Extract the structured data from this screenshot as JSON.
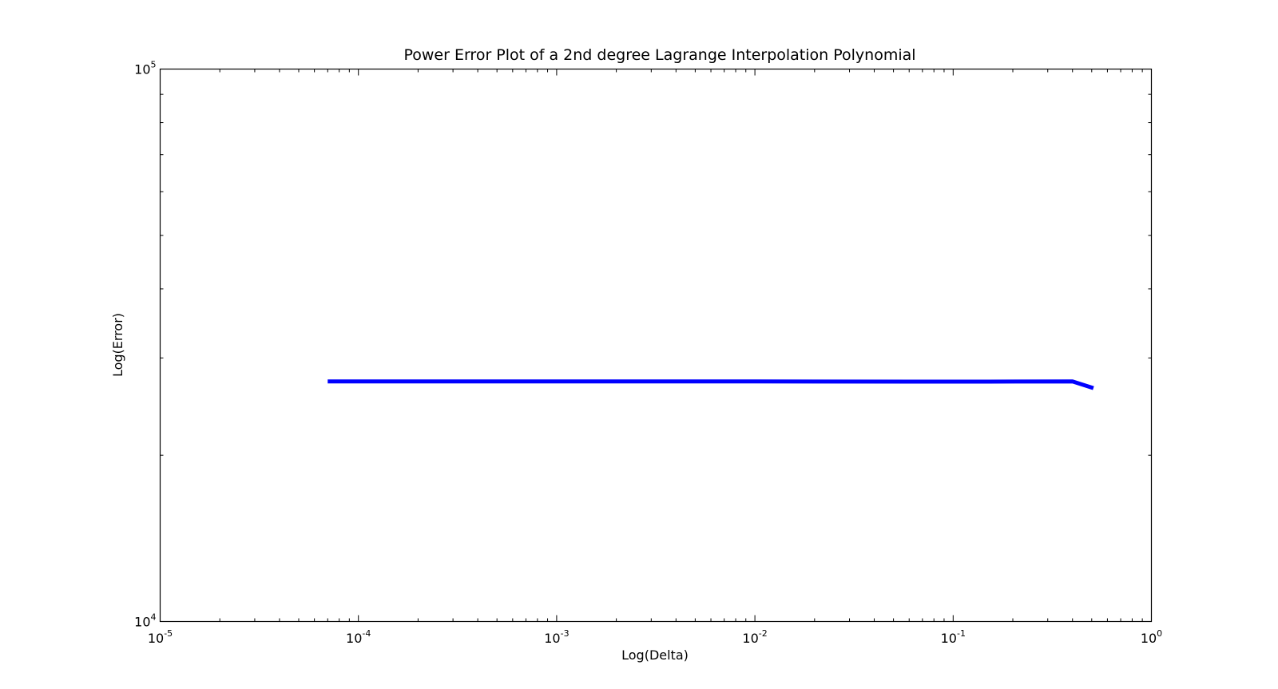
{
  "chart_data": {
    "type": "line",
    "title": "Power Error Plot of a 2nd degree Lagrange Interpolation Polynomial",
    "xlabel": "Log(Delta)",
    "ylabel": "Log(Error)",
    "xscale": "log",
    "yscale": "log",
    "xlim": [
      1e-05,
      1
    ],
    "ylim": [
      10000,
      100000
    ],
    "grid": false,
    "x_ticks": [
      {
        "base": "10",
        "exp": "-5",
        "value": 1e-05
      },
      {
        "base": "10",
        "exp": "-4",
        "value": 0.0001
      },
      {
        "base": "10",
        "exp": "-3",
        "value": 0.001
      },
      {
        "base": "10",
        "exp": "-2",
        "value": 0.01
      },
      {
        "base": "10",
        "exp": "-1",
        "value": 0.1
      },
      {
        "base": "10",
        "exp": "0",
        "value": 1
      }
    ],
    "y_ticks": [
      {
        "base": "10",
        "exp": "4",
        "value": 10000
      },
      {
        "base": "10",
        "exp": "5",
        "value": 100000
      }
    ],
    "series": [
      {
        "color": "#0000ff",
        "x": [
          7e-05,
          0.0001,
          0.001,
          0.01,
          0.08,
          0.15,
          0.4,
          0.51
        ],
        "y": [
          27200,
          27200,
          27200,
          27200,
          27180,
          27180,
          27200,
          26450
        ]
      }
    ]
  }
}
